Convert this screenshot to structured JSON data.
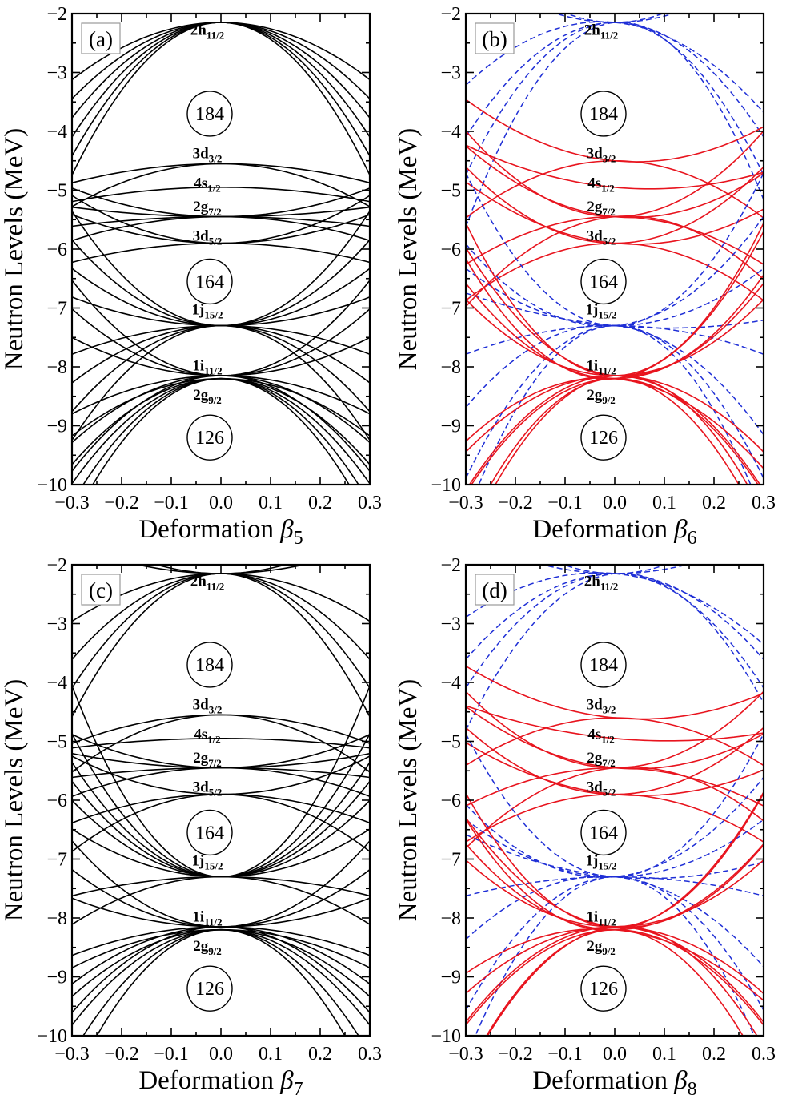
{
  "chart_data": [
    {
      "id": "a",
      "type": "line",
      "panel_label": "(a)",
      "xlabel": "Deformation",
      "xsymbol": "β",
      "xsub": "5",
      "ylabel": "Neutron Levels (MeV)",
      "xlim": [
        -0.3,
        0.3
      ],
      "ylim": [
        -10,
        -2
      ],
      "xticks": [
        "−0.3",
        "−0.2",
        "−0.1",
        "0.0",
        "0.1",
        "0.2",
        "0.3"
      ],
      "yticks": [
        "−10",
        "−9",
        "−8",
        "−7",
        "−6",
        "−5",
        "−4",
        "−3",
        "−2"
      ],
      "levels": [
        {
          "n": "2h",
          "j": "11/2",
          "e": -2.15
        },
        {
          "n": "3d",
          "j": "3/2",
          "e": -4.55
        },
        {
          "n": "4s",
          "j": "1/2",
          "e": -4.95
        },
        {
          "n": "2g",
          "j": "7/2",
          "e": -5.45
        },
        {
          "n": "3d",
          "j": "5/2",
          "e": -5.9
        },
        {
          "n": "1j",
          "j": "15/2",
          "e": -7.3
        },
        {
          "n": "1i",
          "j": "11/2",
          "e": -8.15
        },
        {
          "n": "2g",
          "j": "9/2",
          "e": -8.2
        }
      ],
      "magic_numbers": [
        {
          "label": "184",
          "e": -3.7
        },
        {
          "label": "164",
          "e": -6.55
        },
        {
          "label": "126",
          "e": -9.2
        }
      ],
      "series": [
        {
          "name": "2h11/2",
          "style": "solid",
          "spread": [
            -0.6,
            -0.8,
            -1.0,
            -1.2,
            -1.4,
            -1.6
          ]
        },
        {
          "name": "3d3/2",
          "style": "solid",
          "spread": [
            -0.2,
            -0.45
          ]
        },
        {
          "name": "4s1/2",
          "style": "solid",
          "spread": [
            -0.15
          ]
        },
        {
          "name": "2g7/2",
          "style": "solid",
          "spread": [
            -0.25,
            -0.1,
            0.1,
            0.3
          ]
        },
        {
          "name": "3d5/2",
          "style": "solid",
          "spread": [
            0.3,
            -0.2,
            0.5
          ]
        },
        {
          "name": "1j15/2",
          "style": "solid",
          "spread": [
            0.3,
            -0.3,
            0.6,
            -0.6,
            0.9,
            -0.9,
            1.2,
            -1.2
          ]
        },
        {
          "name": "1i11/2",
          "style": "solid",
          "spread": [
            0.4,
            -0.4,
            0.7,
            -0.7,
            1.0,
            -1.0
          ]
        },
        {
          "name": "2g9/2",
          "style": "solid",
          "spread": [
            -0.6,
            -0.9,
            -1.1,
            -1.3,
            -1.5
          ]
        }
      ]
    },
    {
      "id": "b",
      "type": "line",
      "panel_label": "(b)",
      "xlabel": "Deformation",
      "xsymbol": "β",
      "xsub": "6",
      "ylabel": "Neutron Levels (MeV)",
      "xlim": [
        -0.3,
        0.3
      ],
      "ylim": [
        -10,
        -2
      ],
      "xticks": [
        "−0.3",
        "−0.2",
        "−0.1",
        "0.0",
        "0.1",
        "0.2",
        "0.3"
      ],
      "yticks": [
        "−10",
        "−9",
        "−8",
        "−7",
        "−6",
        "−5",
        "−4",
        "−3",
        "−2"
      ],
      "levels": [
        {
          "n": "2h",
          "j": "11/2",
          "e": -2.15
        },
        {
          "n": "3d",
          "j": "3/2",
          "e": -4.5
        },
        {
          "n": "4s",
          "j": "1/2",
          "e": -4.95
        },
        {
          "n": "2g",
          "j": "7/2",
          "e": -5.45
        },
        {
          "n": "3d",
          "j": "5/2",
          "e": -5.9
        },
        {
          "n": "1j",
          "j": "15/2",
          "e": -7.3
        },
        {
          "n": "1i",
          "j": "11/2",
          "e": -8.15
        },
        {
          "n": "2g",
          "j": "9/2",
          "e": -8.2
        }
      ],
      "magic_numbers": [
        {
          "label": "184",
          "e": -3.7
        },
        {
          "label": "164",
          "e": -6.55
        },
        {
          "label": "126",
          "e": -9.2
        }
      ],
      "series": [
        {
          "name": "2h11/2",
          "style": "dashed",
          "spread": [
            -0.8,
            -1.2,
            -1.6,
            -2.0,
            0.6,
            0.9
          ]
        },
        {
          "name": "3d3/2",
          "style": "solid",
          "spread": [
            0.5,
            -0.6
          ]
        },
        {
          "name": "4s1/2",
          "style": "solid",
          "spread": [
            0.3
          ]
        },
        {
          "name": "2g7/2",
          "style": "solid",
          "spread": [
            0.6,
            -0.5,
            0.9,
            -0.8
          ]
        },
        {
          "name": "3d5/2",
          "style": "solid",
          "spread": [
            0.5,
            -0.6,
            0.8
          ]
        },
        {
          "name": "1j15/2",
          "style": "dashed",
          "spread": [
            -1.0,
            -1.6,
            -2.0,
            1.0,
            1.6,
            -0.3,
            0.2,
            0.6
          ]
        },
        {
          "name": "1i11/2",
          "style": "solid",
          "spread": [
            1.2,
            -1.2,
            1.6,
            -1.6,
            0.8,
            -0.8
          ]
        },
        {
          "name": "2g9/2",
          "style": "solid",
          "spread": [
            -0.8,
            -1.2,
            1.0,
            1.4,
            -1.6
          ]
        }
      ]
    },
    {
      "id": "c",
      "type": "line",
      "panel_label": "(c)",
      "xlabel": "Deformation",
      "xsymbol": "β",
      "xsub": "7",
      "ylabel": "Neutron Levels (MeV)",
      "xlim": [
        -0.3,
        0.3
      ],
      "ylim": [
        -10,
        -2
      ],
      "xticks": [
        "−0.3",
        "−0.2",
        "−0.1",
        "0.0",
        "0.1",
        "0.2",
        "0.3"
      ],
      "yticks": [
        "−10",
        "−9",
        "−8",
        "−7",
        "−6",
        "−5",
        "−4",
        "−3",
        "−2"
      ],
      "levels": [
        {
          "n": "2h",
          "j": "11/2",
          "e": -2.15
        },
        {
          "n": "3d",
          "j": "3/2",
          "e": -4.55
        },
        {
          "n": "4s",
          "j": "1/2",
          "e": -4.95
        },
        {
          "n": "2g",
          "j": "7/2",
          "e": -5.45
        },
        {
          "n": "3d",
          "j": "5/2",
          "e": -5.9
        },
        {
          "n": "1j",
          "j": "15/2",
          "e": -7.3
        },
        {
          "n": "1i",
          "j": "11/2",
          "e": -8.15
        },
        {
          "n": "2g",
          "j": "9/2",
          "e": -8.2
        }
      ],
      "magic_numbers": [
        {
          "label": "184",
          "e": -3.7
        },
        {
          "label": "164",
          "e": -6.55
        },
        {
          "label": "126",
          "e": -9.2
        }
      ],
      "series": [
        {
          "name": "2h11/2",
          "style": "solid",
          "spread": [
            -0.5,
            -0.9,
            -1.2,
            -1.5,
            0.3,
            0.5
          ]
        },
        {
          "name": "3d3/2",
          "style": "solid",
          "spread": [
            -0.3,
            -0.6
          ]
        },
        {
          "name": "4s1/2",
          "style": "solid",
          "spread": [
            -0.1
          ]
        },
        {
          "name": "2g7/2",
          "style": "solid",
          "spread": [
            -0.3,
            -0.1,
            0.15,
            0.35
          ]
        },
        {
          "name": "3d5/2",
          "style": "solid",
          "spread": [
            -0.3,
            -0.6,
            0.4
          ]
        },
        {
          "name": "1j15/2",
          "style": "solid",
          "spread": [
            0.5,
            1.0,
            1.5,
            2.0,
            -0.5,
            0.8,
            1.2,
            -0.2
          ]
        },
        {
          "name": "1i11/2",
          "style": "solid",
          "spread": [
            0.3,
            -0.3,
            0.6,
            -0.6,
            0.9,
            -0.9
          ]
        },
        {
          "name": "2g9/2",
          "style": "solid",
          "spread": [
            -0.4,
            -0.7,
            -1.0,
            -1.3,
            -1.6
          ]
        }
      ]
    },
    {
      "id": "d",
      "type": "line",
      "panel_label": "(d)",
      "xlabel": "Deformation",
      "xsymbol": "β",
      "xsub": "8",
      "ylabel": "Neutron Levels (MeV)",
      "xlim": [
        -0.3,
        0.3
      ],
      "ylim": [
        -10,
        -2
      ],
      "xticks": [
        "−0.3",
        "−0.2",
        "−0.1",
        "0.0",
        "0.1",
        "0.2",
        "0.3"
      ],
      "yticks": [
        "−10",
        "−9",
        "−8",
        "−7",
        "−6",
        "−5",
        "−4",
        "−3",
        "−2"
      ],
      "levels": [
        {
          "n": "2h",
          "j": "11/2",
          "e": -2.15
        },
        {
          "n": "3d",
          "j": "3/2",
          "e": -4.6
        },
        {
          "n": "4s",
          "j": "1/2",
          "e": -4.95
        },
        {
          "n": "2g",
          "j": "7/2",
          "e": -5.45
        },
        {
          "n": "3d",
          "j": "5/2",
          "e": -5.9
        },
        {
          "n": "1j",
          "j": "15/2",
          "e": -7.3
        },
        {
          "n": "1i",
          "j": "11/2",
          "e": -8.15
        },
        {
          "n": "2g",
          "j": "9/2",
          "e": -8.2
        }
      ],
      "magic_numbers": [
        {
          "label": "184",
          "e": -3.7
        },
        {
          "label": "164",
          "e": -6.55
        },
        {
          "label": "126",
          "e": -9.2
        }
      ],
      "series": [
        {
          "name": "2h11/2",
          "style": "dashed",
          "spread": [
            -0.6,
            -0.9,
            -1.2,
            -1.5,
            0.4,
            0.8
          ]
        },
        {
          "name": "3d3/2",
          "style": "solid",
          "spread": [
            0.4,
            -0.5
          ]
        },
        {
          "name": "4s1/2",
          "style": "solid",
          "spread": [
            0.2
          ]
        },
        {
          "name": "2g7/2",
          "style": "solid",
          "spread": [
            0.5,
            -0.4,
            0.8,
            -0.7
          ]
        },
        {
          "name": "3d5/2",
          "style": "solid",
          "spread": [
            0.4,
            -0.5,
            0.7
          ]
        },
        {
          "name": "1j15/2",
          "style": "dashed",
          "spread": [
            -0.8,
            -1.4,
            -1.9,
            0.9,
            1.5,
            -0.2,
            0.3,
            0.6
          ]
        },
        {
          "name": "1i11/2",
          "style": "solid",
          "spread": [
            1.0,
            -1.0,
            1.4,
            -1.4,
            0.7,
            -0.7
          ]
        },
        {
          "name": "2g9/2",
          "style": "solid",
          "spread": [
            -0.6,
            -1.0,
            0.9,
            1.3,
            -1.5
          ]
        }
      ]
    }
  ]
}
